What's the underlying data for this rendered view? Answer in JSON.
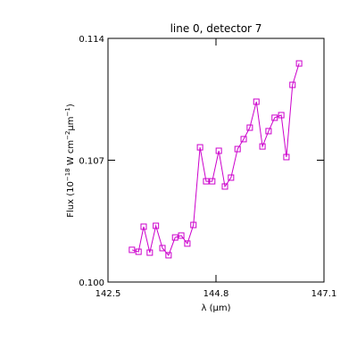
{
  "chart_data": {
    "type": "line",
    "title": "line 0, detector 7",
    "xlabel": "λ (μm)",
    "ylabel_parts": [
      {
        "text": "Flux (10"
      },
      {
        "text": "−18",
        "sup": true
      },
      {
        "text": " W cm"
      },
      {
        "text": "−2",
        "sup": true
      },
      {
        "text": "μm"
      },
      {
        "text": "−1",
        "sup": true
      },
      {
        "text": ")"
      }
    ],
    "xlim": [
      142.5,
      147.1
    ],
    "xticks": [
      142.5,
      144.8,
      147.1
    ],
    "ylim": [
      0.1,
      0.114
    ],
    "yticks": [
      {
        "value": 0.1,
        "label": "0.100"
      },
      0.107,
      0.114
    ],
    "marker": "square",
    "series": [
      {
        "color": "#cc00cc",
        "x": [
          143.01,
          143.15,
          143.26,
          143.39,
          143.52,
          143.66,
          143.79,
          143.93,
          144.06,
          144.19,
          144.32,
          144.46,
          144.59,
          144.72,
          144.86,
          144.99,
          145.12,
          145.26,
          145.39,
          145.52,
          145.66,
          145.79,
          145.92,
          146.05,
          146.19,
          146.3,
          146.43,
          146.57
        ],
        "values": [
          0.10185,
          0.10174,
          0.10318,
          0.10169,
          0.10323,
          0.10195,
          0.10154,
          0.10256,
          0.10267,
          0.10221,
          0.10328,
          0.10774,
          0.10579,
          0.10579,
          0.10754,
          0.10549,
          0.106,
          0.10764,
          0.10821,
          0.10887,
          0.11036,
          0.10779,
          0.10867,
          0.10944,
          0.10959,
          0.10718,
          0.11133,
          0.11256
        ]
      }
    ]
  }
}
